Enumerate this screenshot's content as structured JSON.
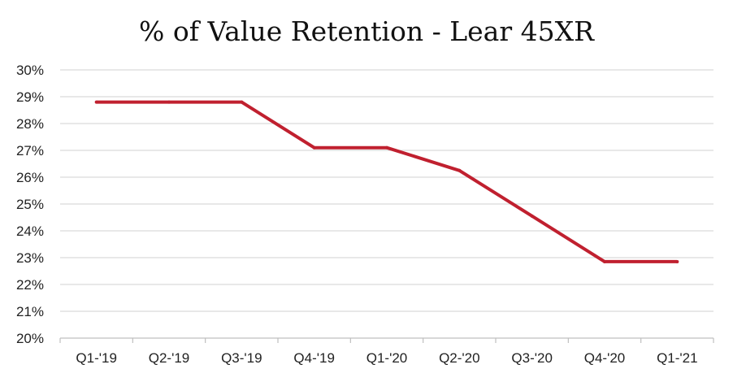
{
  "chart_data": {
    "type": "line",
    "title": "% of Value Retention - Lear 45XR",
    "xlabel": "",
    "ylabel": "",
    "categories": [
      "Q1-'19",
      "Q2-'19",
      "Q3-'19",
      "Q4-'19",
      "Q1-'20",
      "Q2-'20",
      "Q3-'20",
      "Q4-'20",
      "Q1-'21"
    ],
    "series": [
      {
        "values": [
          28.8,
          28.8,
          28.8,
          27.1,
          27.1,
          26.25,
          24.55,
          22.85,
          22.85
        ],
        "color": "#c0202f"
      }
    ],
    "ylim": [
      20,
      30
    ],
    "y_ticks": [
      "20%",
      "21%",
      "22%",
      "23%",
      "24%",
      "25%",
      "26%",
      "27%",
      "28%",
      "29%",
      "30%"
    ],
    "grid": true,
    "legend": "none"
  }
}
